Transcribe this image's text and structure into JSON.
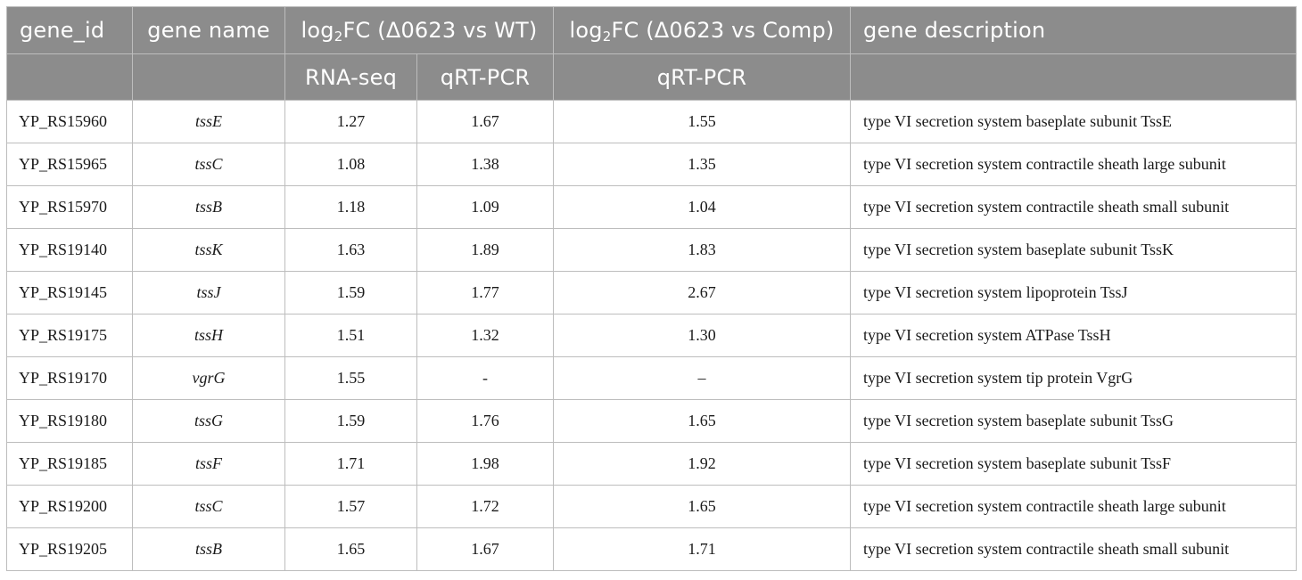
{
  "header": {
    "gene_id": "gene_id",
    "gene_name": "gene name",
    "fc_wt_prefix": "log",
    "fc_wt_sub": "2",
    "fc_wt_suffix": "FC (Δ0623 vs WT)",
    "fc_comp_prefix": "log",
    "fc_comp_sub": "2",
    "fc_comp_suffix": "FC (Δ0623 vs Comp)",
    "gene_description": "gene description",
    "sub_rnaseq": "RNA-seq",
    "sub_qrtpcr_wt": "qRT-PCR",
    "sub_qrtpcr_comp": "qRT-PCR"
  },
  "rows": [
    {
      "gene_id": "YP_RS15960",
      "gene_name": "tssE",
      "rnaseq": "1.27",
      "qrt_wt": "1.67",
      "qrt_comp": "1.55",
      "desc": "type VI secretion system baseplate subunit TssE"
    },
    {
      "gene_id": "YP_RS15965",
      "gene_name": "tssC",
      "rnaseq": "1.08",
      "qrt_wt": "1.38",
      "qrt_comp": "1.35",
      "desc": "type VI secretion system contractile sheath large subunit"
    },
    {
      "gene_id": "YP_RS15970",
      "gene_name": "tssB",
      "rnaseq": "1.18",
      "qrt_wt": "1.09",
      "qrt_comp": "1.04",
      "desc": "type VI secretion system contractile sheath small subunit"
    },
    {
      "gene_id": "YP_RS19140",
      "gene_name": "tssK",
      "rnaseq": "1.63",
      "qrt_wt": "1.89",
      "qrt_comp": "1.83",
      "desc": "type VI secretion system baseplate subunit TssK"
    },
    {
      "gene_id": "YP_RS19145",
      "gene_name": "tssJ",
      "rnaseq": "1.59",
      "qrt_wt": "1.77",
      "qrt_comp": "2.67",
      "desc": "type VI secretion system lipoprotein TssJ"
    },
    {
      "gene_id": "YP_RS19175",
      "gene_name": "tssH",
      "rnaseq": "1.51",
      "qrt_wt": "1.32",
      "qrt_comp": "1.30",
      "desc": "type VI secretion system ATPase TssH"
    },
    {
      "gene_id": "YP_RS19170",
      "gene_name": "vgrG",
      "rnaseq": "1.55",
      "qrt_wt": "-",
      "qrt_comp": "–",
      "desc": "type VI secretion system tip protein VgrG"
    },
    {
      "gene_id": "YP_RS19180",
      "gene_name": "tssG",
      "rnaseq": "1.59",
      "qrt_wt": "1.76",
      "qrt_comp": "1.65",
      "desc": "type VI secretion system baseplate subunit TssG"
    },
    {
      "gene_id": "YP_RS19185",
      "gene_name": "tssF",
      "rnaseq": "1.71",
      "qrt_wt": "1.98",
      "qrt_comp": "1.92",
      "desc": "type VI secretion system baseplate subunit TssF"
    },
    {
      "gene_id": "YP_RS19200",
      "gene_name": "tssC",
      "rnaseq": "1.57",
      "qrt_wt": "1.72",
      "qrt_comp": "1.65",
      "desc": "type VI secretion system contractile sheath large subunit"
    },
    {
      "gene_id": "YP_RS19205",
      "gene_name": "tssB",
      "rnaseq": "1.65",
      "qrt_wt": "1.67",
      "qrt_comp": "1.71",
      "desc": "type VI secretion system contractile sheath small subunit"
    }
  ],
  "colors": {
    "header_bg": "#8c8c8c",
    "header_text": "#ffffff",
    "grid": "#bdbdbd"
  }
}
